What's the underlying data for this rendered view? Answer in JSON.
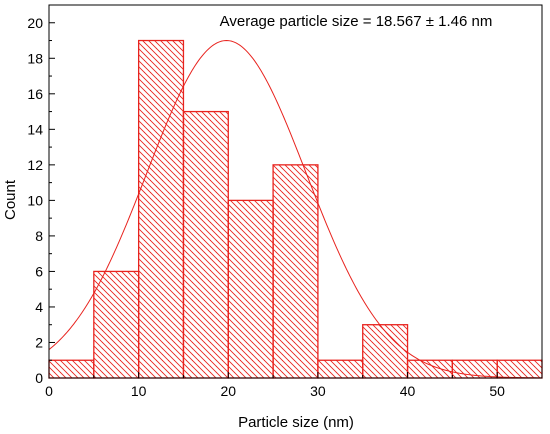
{
  "chart_data": {
    "type": "bar",
    "subtype": "histogram",
    "annotation": "Average particle size = 18.567 ± 1.46 nm",
    "xlabel": "Particle size (nm)",
    "ylabel": "Count",
    "xlim": [
      0,
      55
    ],
    "ylim": [
      0,
      21
    ],
    "xticks": [
      0,
      10,
      20,
      30,
      40,
      50
    ],
    "yticks": [
      0,
      2,
      4,
      6,
      8,
      10,
      12,
      14,
      16,
      18,
      20
    ],
    "bins": [
      {
        "from": 0,
        "to": 5,
        "count": 1
      },
      {
        "from": 5,
        "to": 10,
        "count": 6
      },
      {
        "from": 10,
        "to": 15,
        "count": 19
      },
      {
        "from": 15,
        "to": 20,
        "count": 15
      },
      {
        "from": 20,
        "to": 25,
        "count": 10
      },
      {
        "from": 25,
        "to": 30,
        "count": 12
      },
      {
        "from": 30,
        "to": 35,
        "count": 1
      },
      {
        "from": 35,
        "to": 40,
        "count": 3
      },
      {
        "from": 40,
        "to": 45,
        "count": 1
      },
      {
        "from": 45,
        "to": 50,
        "count": 1
      },
      {
        "from": 50,
        "to": 55,
        "count": 1
      }
    ],
    "fit_curve": {
      "type": "gaussian",
      "peak_x": 19.8,
      "peak_y": 19.0,
      "sigma": 8.9
    },
    "bar_color": "#e8231e",
    "bar_fill": "diagonal-hatch",
    "grid": false
  }
}
